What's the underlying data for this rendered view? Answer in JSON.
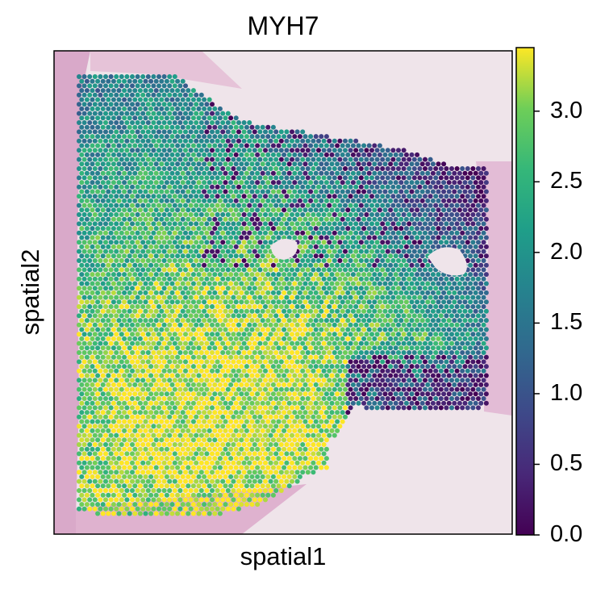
{
  "chart_data": {
    "type": "scatter",
    "title": "MYH7",
    "xlabel": "spatial1",
    "ylabel": "spatial2",
    "colormap": "viridis",
    "colorbar": {
      "range": [
        0.0,
        3.45
      ],
      "ticks": [
        "3.0",
        "2.5",
        "2.0",
        "1.5",
        "1.0",
        "0.5",
        "0.0"
      ],
      "tick_values": [
        3.0,
        2.5,
        2.0,
        1.5,
        1.0,
        0.5,
        0.0
      ]
    },
    "background": "H&E tissue image",
    "grid": false,
    "spatial_pattern": [
      {
        "region": "lower-left",
        "level": "high",
        "approx_value": 3.3
      },
      {
        "region": "upper-left",
        "level": "medium-high",
        "approx_value": 2.7
      },
      {
        "region": "center",
        "level": "medium",
        "approx_value": 2.2
      },
      {
        "region": "upper-right edge",
        "level": "low",
        "approx_value": 0.4
      },
      {
        "region": "lower-right",
        "level": "low",
        "approx_value": 0.6
      }
    ]
  }
}
